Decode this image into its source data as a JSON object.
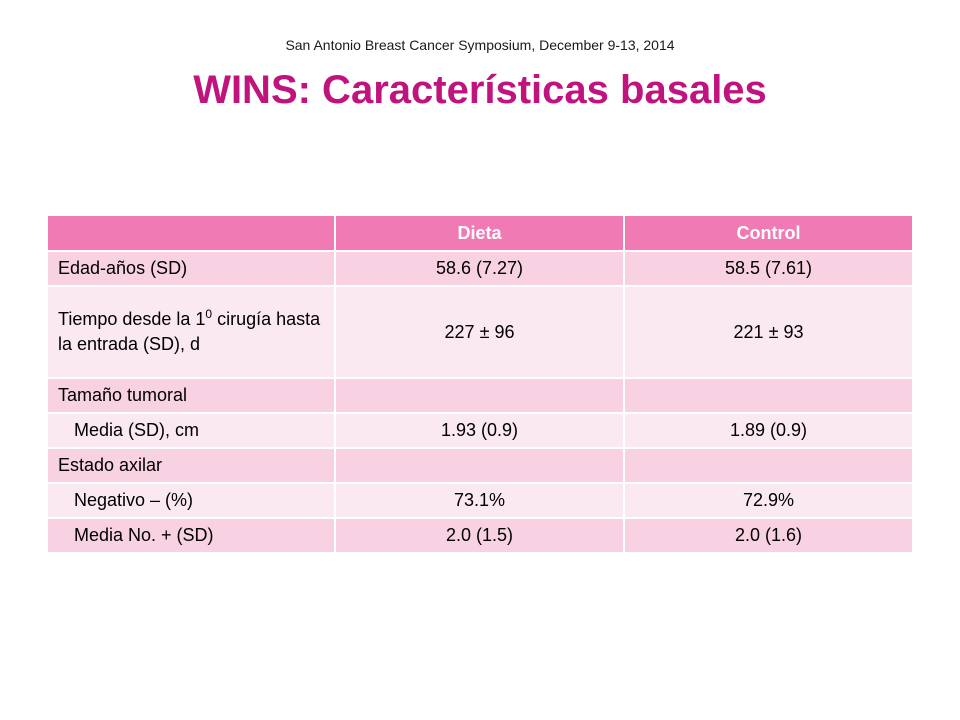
{
  "header": {
    "conference": "San Antonio Breast Cancer Symposium, December 9-13, 2014",
    "title": "WINS: Características basales"
  },
  "table": {
    "columns": [
      "",
      "Dieta",
      "Control"
    ],
    "rows": [
      {
        "label": "Edad-años (SD)",
        "dieta": "58.6 (7.27)",
        "control": "58.5 (7.61)"
      },
      {
        "label_pre": "Tiempo desde la 1",
        "label_sup": "0",
        "label_post": "cirugía hasta la entrada (SD), d",
        "dieta": "227 ± 96",
        "control": "221 ± 93"
      },
      {
        "label": "Tamaño tumoral",
        "dieta": "",
        "control": ""
      },
      {
        "label": "Media (SD), cm",
        "dieta": "1.93 (0.9)",
        "control": "1.89 (0.9)"
      },
      {
        "label": "Estado axilar",
        "dieta": "",
        "control": ""
      },
      {
        "label": "Negativo – (%)",
        "dieta": "73.1%",
        "control": "72.9%"
      },
      {
        "label": "Media No. + (SD)",
        "dieta": "2.0 (1.5)",
        "control": "2.0 (1.6)"
      }
    ]
  },
  "colors": {
    "title": "#c0137e",
    "header_fill": "#f07ab4",
    "row_dark": "#f8d2e2",
    "row_light": "#fbe9f1"
  }
}
